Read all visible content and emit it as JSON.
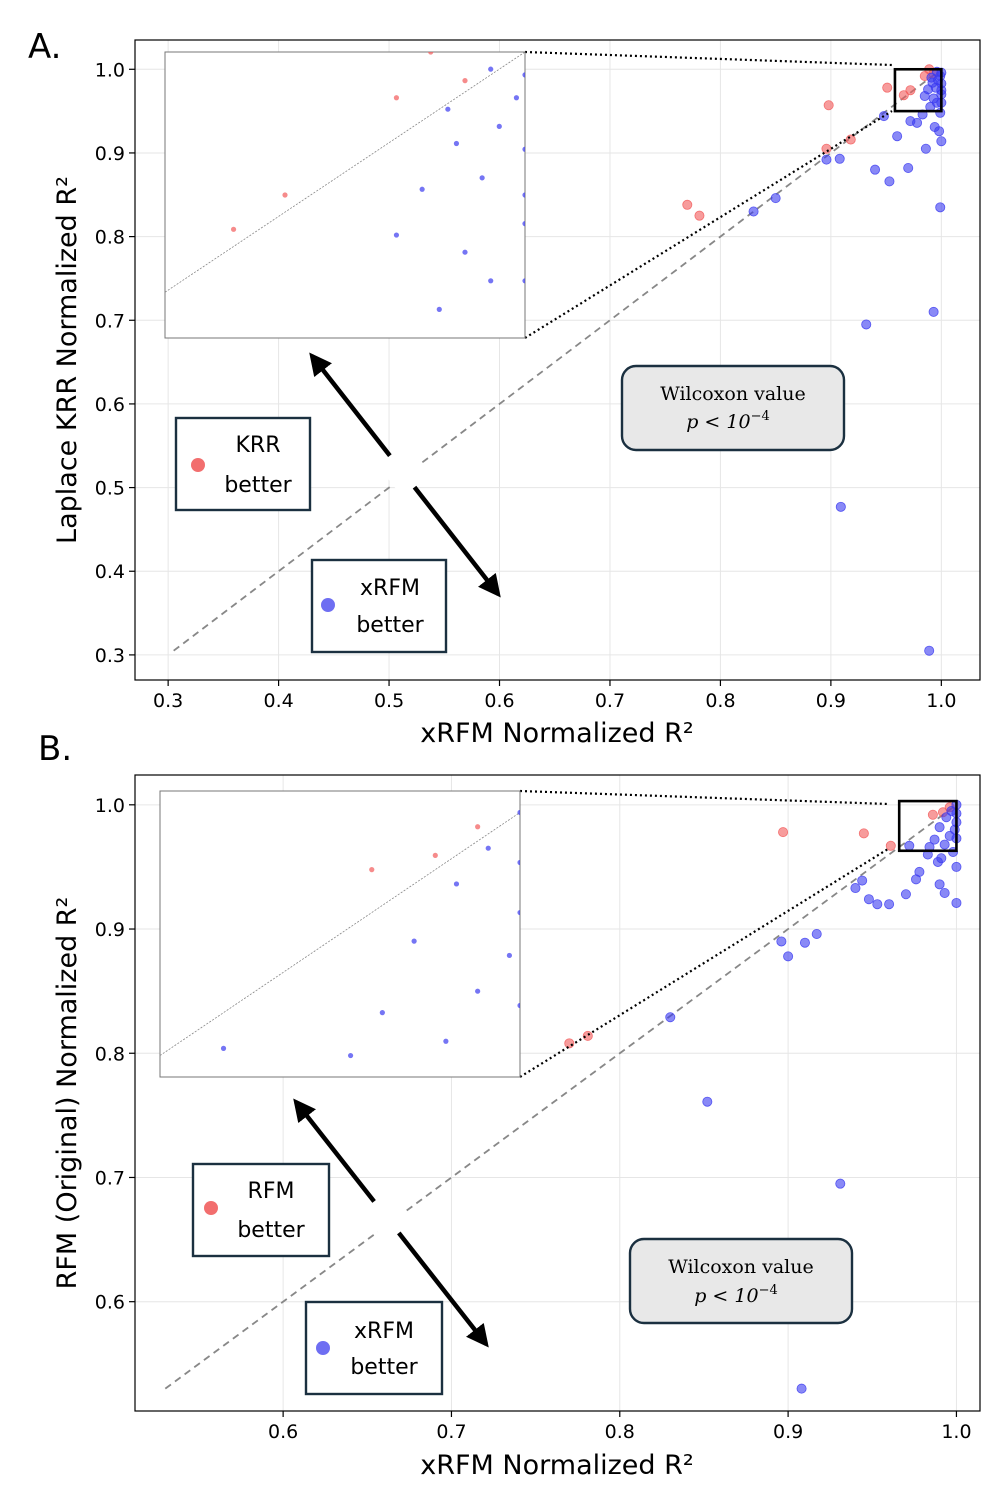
{
  "colors": {
    "red": "#f25a5a",
    "blue": "#3b3bf0",
    "legend_red": "#f05555",
    "legend_blue": "#5555f0",
    "text_box_bg": "#e8e8e8",
    "frame": "#1b3040"
  },
  "chart_data": [
    {
      "panel_label": "A.",
      "type": "scatter",
      "xlabel": "xRFM Normalized R²",
      "ylabel": "Laplace KRR Normalized R²",
      "xlim": [
        0.27,
        1.035
      ],
      "ylim": [
        0.27,
        1.035
      ],
      "xticks": [
        0.3,
        0.4,
        0.5,
        0.6,
        0.7,
        0.8,
        0.9,
        1.0
      ],
      "yticks": [
        0.3,
        0.4,
        0.5,
        0.6,
        0.7,
        0.8,
        0.9,
        1.0
      ],
      "xtick_labels": [
        "0.3",
        "0.4",
        "0.5",
        "0.6",
        "0.7",
        "0.8",
        "0.9",
        "1.0"
      ],
      "ytick_labels": [
        "0.3",
        "0.4",
        "0.5",
        "0.6",
        "0.7",
        "0.8",
        "0.9",
        "1.0"
      ],
      "diagonal": [
        0.305,
        1.0
      ],
      "legend_top": {
        "label_line1": "KRR",
        "label_line2": "better",
        "color": "red"
      },
      "legend_bottom": {
        "label_line1": "xRFM",
        "label_line2": "better",
        "color": "blue"
      },
      "stat_box": {
        "line1": "Wilcoxon value",
        "line2": "p < 10",
        "exponent": "−4"
      },
      "zoom_region": {
        "x": [
          0.958,
          1.0
        ],
        "y": [
          0.95,
          1.0
        ]
      },
      "series": [
        {
          "name": "KRR better",
          "color": "red",
          "points": [
            [
              0.77,
              0.838
            ],
            [
              0.781,
              0.825
            ],
            [
              0.898,
              0.957
            ],
            [
              0.896,
              0.905
            ],
            [
              0.918,
              0.916
            ],
            [
              0.951,
              0.978
            ],
            [
              0.966,
              0.969
            ],
            [
              0.972,
              0.975
            ],
            [
              0.985,
              0.992
            ],
            [
              0.989,
              1.0
            ],
            [
              0.993,
              0.995
            ]
          ]
        },
        {
          "name": "xRFM better",
          "color": "blue",
          "points": [
            [
              0.83,
              0.83
            ],
            [
              0.85,
              0.846
            ],
            [
              0.896,
              0.892
            ],
            [
              0.908,
              0.893
            ],
            [
              0.932,
              0.695
            ],
            [
              0.909,
              0.477
            ],
            [
              0.989,
              0.305
            ],
            [
              0.993,
              0.71
            ],
            [
              0.999,
              0.835
            ],
            [
              0.94,
              0.88
            ],
            [
              0.953,
              0.866
            ],
            [
              0.97,
              0.882
            ],
            [
              0.986,
              0.905
            ],
            [
              0.948,
              0.944
            ],
            [
              0.96,
              0.92
            ],
            [
              0.972,
              0.938
            ],
            [
              0.978,
              0.936
            ],
            [
              0.994,
              0.931
            ],
            [
              0.998,
              0.926
            ],
            [
              1.0,
              0.914
            ],
            [
              0.983,
              0.946
            ],
            [
              0.99,
              0.955
            ],
            [
              0.993,
              0.965
            ],
            [
              0.996,
              0.96
            ],
            [
              0.999,
              0.948
            ],
            [
              1.0,
              0.96
            ],
            [
              0.988,
              0.976
            ],
            [
              0.992,
              0.984
            ],
            [
              0.995,
              0.978
            ],
            [
              0.997,
              0.987
            ],
            [
              0.999,
              0.992
            ],
            [
              1.0,
              0.996
            ],
            [
              1.0,
              0.983
            ],
            [
              1.0,
              0.97
            ],
            [
              0.996,
              0.997
            ],
            [
              0.991,
              0.99
            ],
            [
              0.985,
              0.968
            ],
            [
              1.0,
              0.975
            ]
          ]
        }
      ]
    },
    {
      "panel_label": "B.",
      "type": "scatter",
      "xlabel": "xRFM Normalized R²",
      "ylabel": "RFM (Original) Normalized R²",
      "xlim": [
        0.512,
        1.014
      ],
      "ylim": [
        0.512,
        1.024
      ],
      "xticks": [
        0.6,
        0.7,
        0.8,
        0.9,
        1.0
      ],
      "yticks": [
        0.6,
        0.7,
        0.8,
        0.9,
        1.0
      ],
      "xtick_labels": [
        "0.6",
        "0.7",
        "0.8",
        "0.9",
        "1.0"
      ],
      "ytick_labels": [
        "0.6",
        "0.7",
        "0.8",
        "0.9",
        "1.0"
      ],
      "diagonal": [
        0.53,
        1.0
      ],
      "legend_top": {
        "label_line1": "RFM",
        "label_line2": "better",
        "color": "red"
      },
      "legend_bottom": {
        "label_line1": "xRFM",
        "label_line2": "better",
        "color": "blue"
      },
      "stat_box": {
        "line1": "Wilcoxon value",
        "line2": "p < 10",
        "exponent": "−4"
      },
      "zoom_region": {
        "x": [
          0.966,
          1.0
        ],
        "y": [
          0.963,
          1.003
        ]
      },
      "series": [
        {
          "name": "RFM better",
          "color": "red",
          "points": [
            [
              0.77,
              0.808
            ],
            [
              0.781,
              0.814
            ],
            [
              0.897,
              0.978
            ],
            [
              0.945,
              0.977
            ],
            [
              0.961,
              0.967
            ],
            [
              0.986,
              0.992
            ],
            [
              0.992,
              0.994
            ],
            [
              0.996,
              0.998
            ]
          ]
        },
        {
          "name": "xRFM better",
          "color": "blue",
          "points": [
            [
              0.83,
              0.829
            ],
            [
              0.852,
              0.761
            ],
            [
              0.896,
              0.89
            ],
            [
              0.9,
              0.878
            ],
            [
              0.91,
              0.889
            ],
            [
              0.917,
              0.896
            ],
            [
              0.931,
              0.695
            ],
            [
              0.908,
              0.53
            ],
            [
              0.94,
              0.933
            ],
            [
              0.944,
              0.939
            ],
            [
              0.948,
              0.924
            ],
            [
              0.953,
              0.92
            ],
            [
              0.96,
              0.92
            ],
            [
              0.97,
              0.928
            ],
            [
              0.978,
              0.946
            ],
            [
              0.983,
              0.96
            ],
            [
              0.99,
              0.936
            ],
            [
              0.993,
              0.929
            ],
            [
              1.0,
              0.921
            ],
            [
              0.989,
              0.954
            ],
            [
              1.0,
              0.95
            ],
            [
              0.984,
              0.966
            ],
            [
              0.987,
              0.972
            ],
            [
              0.993,
              0.968
            ],
            [
              0.996,
              0.975
            ],
            [
              0.999,
              0.98
            ],
            [
              1.0,
              0.986
            ],
            [
              0.99,
              0.982
            ],
            [
              0.994,
              0.99
            ],
            [
              0.997,
              0.995
            ],
            [
              1.0,
              1.0
            ],
            [
              1.0,
              0.993
            ],
            [
              0.972,
              0.967
            ],
            [
              0.998,
              0.962
            ],
            [
              0.991,
              0.957
            ],
            [
              1.0,
              0.973
            ],
            [
              0.976,
              0.94
            ]
          ]
        }
      ]
    }
  ]
}
